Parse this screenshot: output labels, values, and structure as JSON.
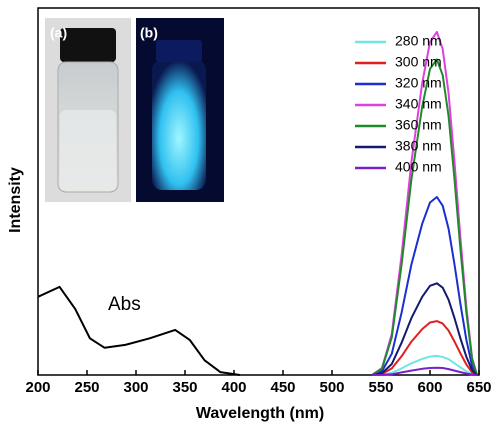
{
  "chart_data": {
    "type": "line",
    "xlabel": "Wavelength (nm)",
    "ylabel": "Intensity",
    "xlim": [
      200,
      650
    ],
    "xticks": [
      200,
      250,
      300,
      350,
      400,
      450,
      500,
      550,
      600,
      650
    ],
    "ylim": [
      0,
      100
    ],
    "annotation": "Abs",
    "inset_labels": [
      "(a)",
      "(b)"
    ],
    "series": [
      {
        "name": "280 nm",
        "color": "#6fe6e6",
        "x": [
          541,
          551,
          561,
          571,
          581,
          592,
          600,
          607,
          613,
          619,
          625,
          631,
          637,
          643,
          648
        ],
        "values": [
          0,
          0.1,
          0.6,
          1.8,
          3.2,
          4.4,
          5.0,
          5.2,
          4.9,
          4.3,
          3.2,
          2.1,
          1.0,
          0.3,
          0
        ]
      },
      {
        "name": "300 nm",
        "color": "#e02020",
        "x": [
          541,
          551,
          561,
          571,
          581,
          592,
          600,
          607,
          613,
          619,
          625,
          631,
          637,
          643,
          648
        ],
        "values": [
          0,
          0.3,
          1.8,
          5.1,
          9.1,
          12.5,
          14.3,
          14.7,
          14.0,
          12.1,
          9.1,
          5.9,
          2.9,
          0.7,
          0
        ]
      },
      {
        "name": "320 nm",
        "color": "#1a2fd0",
        "x": [
          541,
          551,
          561,
          571,
          581,
          592,
          600,
          607,
          613,
          619,
          625,
          631,
          637,
          643,
          648
        ],
        "values": [
          0,
          1.0,
          5.8,
          17.0,
          30.1,
          41.2,
          47.0,
          48.5,
          46.1,
          39.8,
          30.1,
          19.4,
          9.7,
          2.4,
          0
        ]
      },
      {
        "name": "340 nm",
        "color": "#e040e0",
        "x": [
          541,
          551,
          561,
          571,
          581,
          592,
          600,
          607,
          613,
          619,
          625,
          631,
          637,
          643,
          648
        ],
        "values": [
          0,
          1.9,
          11.2,
          32.7,
          58.0,
          79.5,
          90.7,
          93.5,
          88.8,
          76.7,
          58.0,
          37.4,
          18.7,
          4.7,
          0
        ]
      },
      {
        "name": "360 nm",
        "color": "#1f8a2a",
        "x": [
          541,
          551,
          561,
          571,
          581,
          592,
          600,
          607,
          613,
          619,
          625,
          631,
          637,
          643,
          648
        ],
        "values": [
          0,
          1.7,
          10.3,
          30.1,
          53.3,
          73.1,
          83.4,
          86,
          81.7,
          70.5,
          53.3,
          34.4,
          17.2,
          4.3,
          0
        ]
      },
      {
        "name": "380 nm",
        "color": "#141a70",
        "x": [
          541,
          551,
          561,
          571,
          581,
          592,
          600,
          607,
          613,
          619,
          625,
          631,
          637,
          643,
          648
        ],
        "values": [
          0,
          0.5,
          3.0,
          8.8,
          15.5,
          21.3,
          24.3,
          25,
          23.8,
          20.5,
          15.5,
          10,
          5,
          1.3,
          0
        ]
      },
      {
        "name": "400 nm",
        "color": "#7a20c8",
        "x": [
          541,
          551,
          561,
          571,
          581,
          592,
          600,
          607,
          613,
          619,
          625,
          631,
          637,
          643,
          648
        ],
        "values": [
          0,
          0.04,
          0.2,
          0.7,
          1.2,
          1.7,
          1.9,
          2,
          1.9,
          1.6,
          1.2,
          0.8,
          0.4,
          0.1,
          0
        ]
      },
      {
        "color": "#000000",
        "x": [
          200,
          222,
          238,
          253,
          268,
          289,
          314,
          340,
          355,
          370,
          386,
          406
        ],
        "values": [
          21.3,
          24,
          18,
          10,
          7.4,
          8.2,
          10,
          12.3,
          9.5,
          4,
          0.8,
          0
        ]
      }
    ]
  }
}
